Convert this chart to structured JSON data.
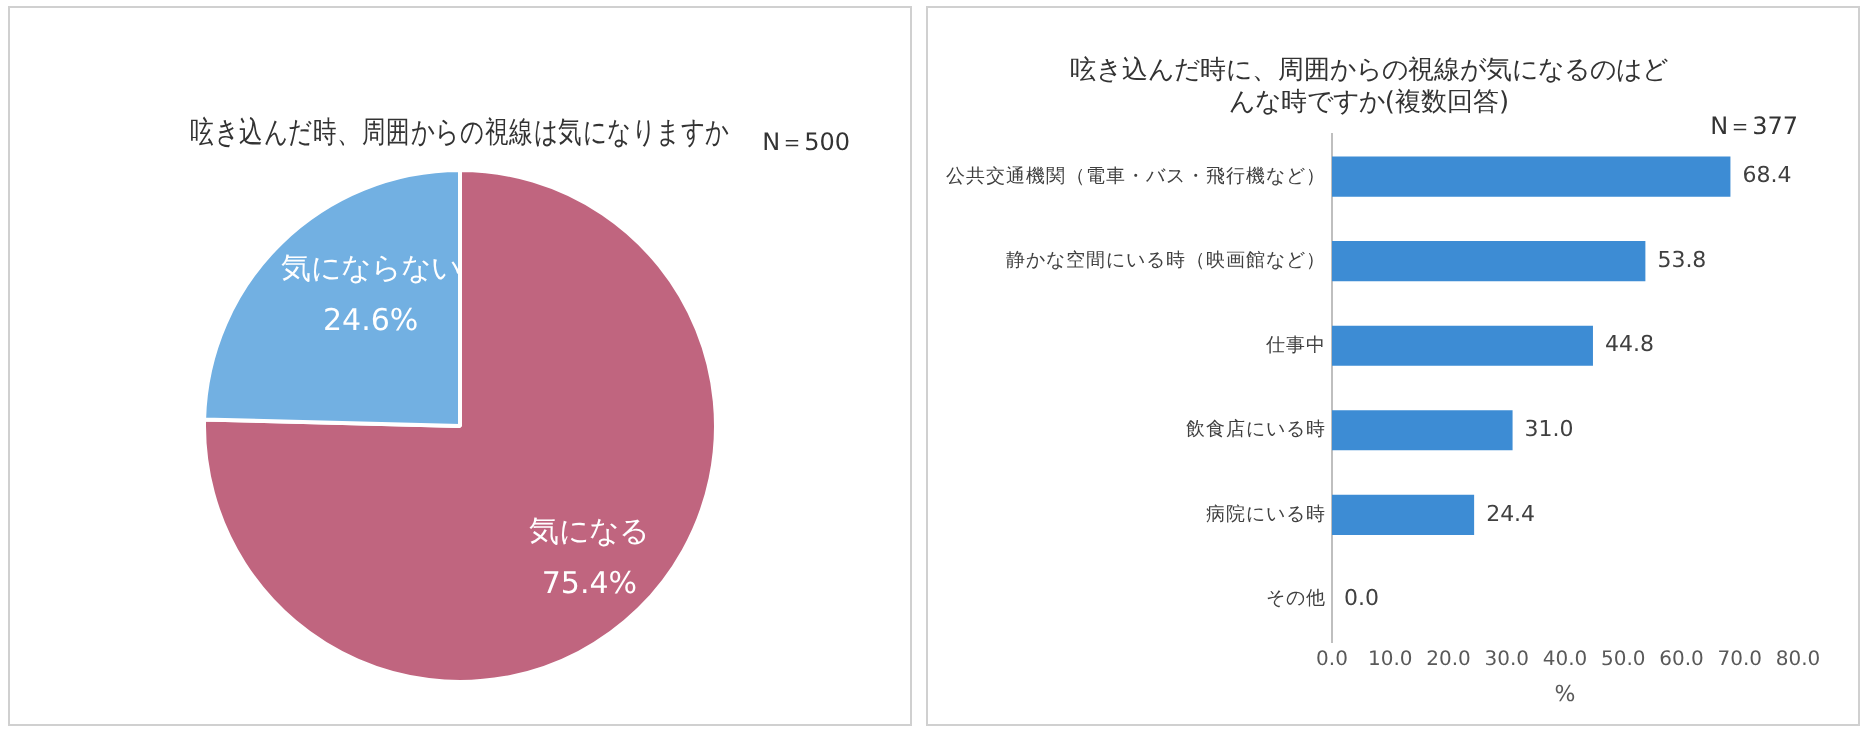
{
  "chart_data": [
    {
      "type": "pie",
      "title": "呟き込んだ時、周囲からの視線は気になりますか",
      "categories": [
        "気になる",
        "気にならない"
      ],
      "values": [
        75.4,
        24.6
      ],
      "colors": [
        "#c0657f",
        "#72b0e2"
      ],
      "value_labels": [
        "75.4%",
        "24.6%"
      ],
      "annotations": [
        "N＝500"
      ],
      "legend": false
    },
    {
      "type": "bar",
      "orientation": "horizontal",
      "title": "呟き込んだ時に、周囲からの視線が気になるのはどんな時ですか(複数回答)",
      "categories": [
        "公共交通機関（電車・バス・飛行機など）",
        "静かな空間にいる時（映画館など）",
        "仕事中",
        "飲食店にいる時",
        "病院にいる時",
        "その他"
      ],
      "values": [
        68.4,
        53.8,
        44.8,
        31.0,
        24.4,
        0.0
      ],
      "color": "#3d8cd4",
      "value_labels": [
        "68.4",
        "53.8",
        "44.8",
        "31.0",
        "24.4",
        "0.0"
      ],
      "xlim": [
        0,
        80
      ],
      "xticks": [
        {
          "value": 0,
          "label": "0.0"
        },
        {
          "value": 10,
          "label": "10.0"
        },
        {
          "value": 20,
          "label": "20.0"
        },
        {
          "value": 30,
          "label": "30.0"
        },
        {
          "value": 40,
          "label": "40.0"
        },
        {
          "value": 50,
          "label": "50.0"
        },
        {
          "value": 60,
          "label": "60.0"
        },
        {
          "value": 70,
          "label": "70.0"
        },
        {
          "value": 80,
          "label": "80.0"
        }
      ],
      "xlabel": "%",
      "annotations": [
        "N＝377"
      ],
      "grid": false,
      "legend": false
    }
  ]
}
